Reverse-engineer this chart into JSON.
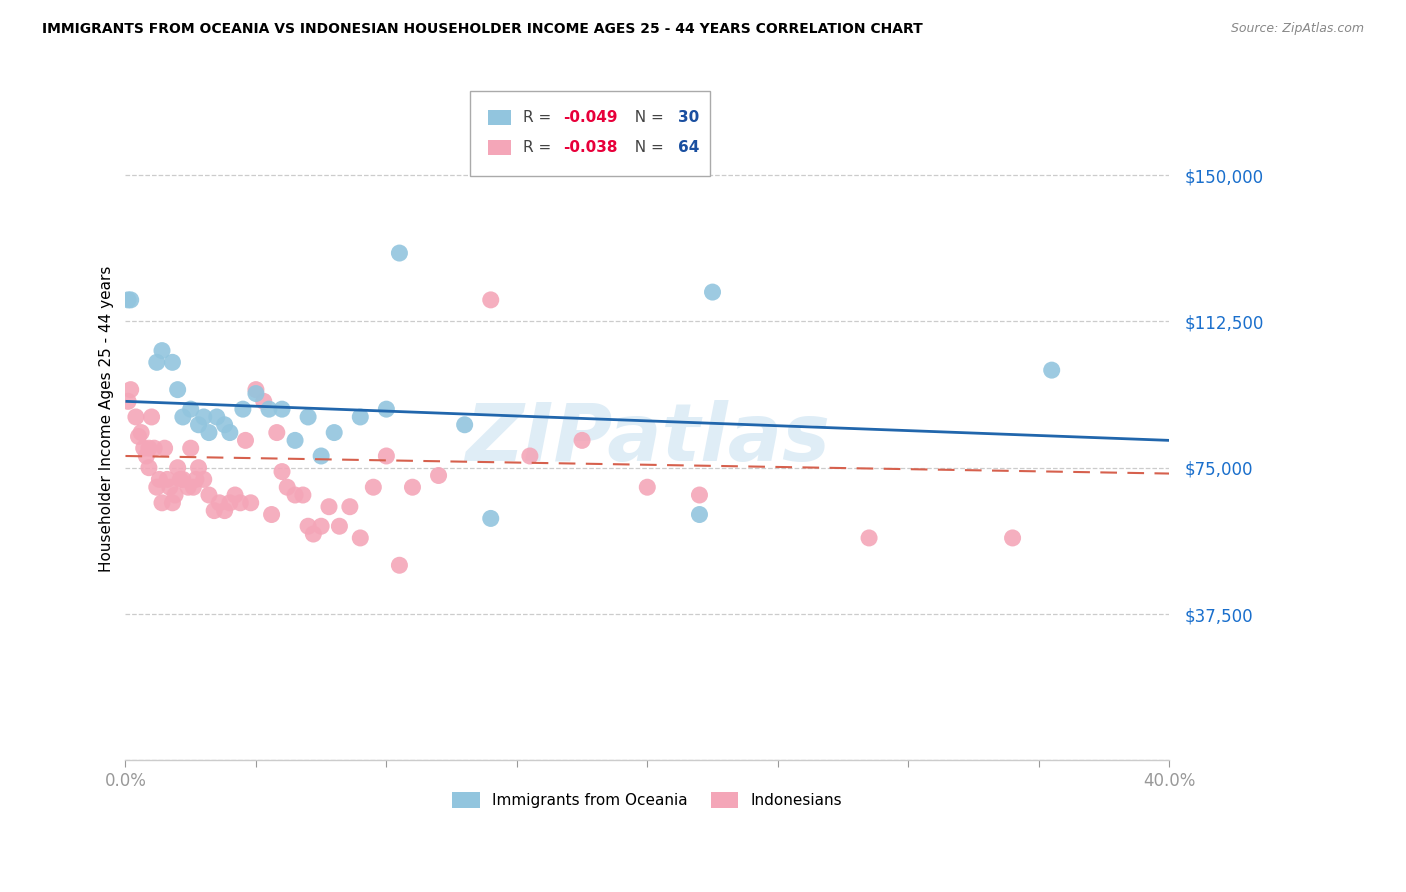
{
  "title": "IMMIGRANTS FROM OCEANIA VS INDONESIAN HOUSEHOLDER INCOME AGES 25 - 44 YEARS CORRELATION CHART",
  "source": "Source: ZipAtlas.com",
  "ylabel": "Householder Income Ages 25 - 44 years",
  "xlim": [
    0.0,
    0.4
  ],
  "ylim": [
    0,
    175000
  ],
  "yticks": [
    0,
    37500,
    75000,
    112500,
    150000
  ],
  "ytick_labels": [
    "",
    "$37,500",
    "$75,000",
    "$112,500",
    "$150,000"
  ],
  "blue_color": "#92c5de",
  "pink_color": "#f4a6b8",
  "blue_line_color": "#2166ac",
  "pink_line_color": "#d6604d",
  "watermark": "ZIPatlas",
  "blue_R": -0.049,
  "blue_N": 30,
  "pink_R": -0.038,
  "pink_N": 64,
  "blue_scatter_x": [
    0.001,
    0.002,
    0.012,
    0.014,
    0.018,
    0.02,
    0.022,
    0.025,
    0.028,
    0.03,
    0.032,
    0.035,
    0.038,
    0.04,
    0.045,
    0.05,
    0.055,
    0.06,
    0.065,
    0.07,
    0.075,
    0.08,
    0.09,
    0.1,
    0.105,
    0.13,
    0.14,
    0.22,
    0.225,
    0.355
  ],
  "blue_scatter_y": [
    118000,
    118000,
    102000,
    105000,
    102000,
    95000,
    88000,
    90000,
    86000,
    88000,
    84000,
    88000,
    86000,
    84000,
    90000,
    94000,
    90000,
    90000,
    82000,
    88000,
    78000,
    84000,
    88000,
    90000,
    130000,
    86000,
    62000,
    63000,
    120000,
    100000
  ],
  "pink_scatter_x": [
    0.001,
    0.002,
    0.004,
    0.005,
    0.006,
    0.007,
    0.008,
    0.009,
    0.009,
    0.01,
    0.011,
    0.012,
    0.013,
    0.014,
    0.015,
    0.016,
    0.017,
    0.018,
    0.019,
    0.02,
    0.021,
    0.022,
    0.024,
    0.025,
    0.026,
    0.027,
    0.028,
    0.03,
    0.032,
    0.034,
    0.036,
    0.038,
    0.04,
    0.042,
    0.044,
    0.046,
    0.048,
    0.05,
    0.053,
    0.056,
    0.058,
    0.06,
    0.062,
    0.065,
    0.068,
    0.07,
    0.072,
    0.075,
    0.078,
    0.082,
    0.086,
    0.09,
    0.095,
    0.1,
    0.105,
    0.11,
    0.12,
    0.14,
    0.155,
    0.175,
    0.2,
    0.22,
    0.285,
    0.34
  ],
  "pink_scatter_y": [
    92000,
    95000,
    88000,
    83000,
    84000,
    80000,
    78000,
    80000,
    75000,
    88000,
    80000,
    70000,
    72000,
    66000,
    80000,
    72000,
    70000,
    66000,
    68000,
    75000,
    72000,
    72000,
    70000,
    80000,
    70000,
    72000,
    75000,
    72000,
    68000,
    64000,
    66000,
    64000,
    66000,
    68000,
    66000,
    82000,
    66000,
    95000,
    92000,
    63000,
    84000,
    74000,
    70000,
    68000,
    68000,
    60000,
    58000,
    60000,
    65000,
    60000,
    65000,
    57000,
    70000,
    78000,
    50000,
    70000,
    73000,
    118000,
    78000,
    82000,
    70000,
    68000,
    57000,
    57000
  ]
}
